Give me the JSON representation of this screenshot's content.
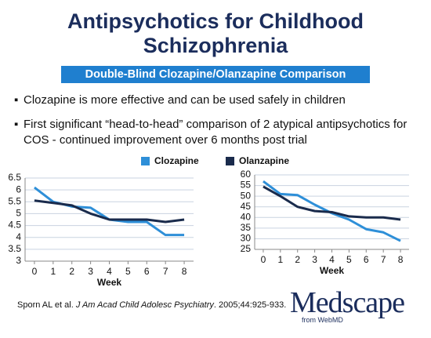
{
  "slide": {
    "title": "Antipsychotics for Childhood Schizophrenia",
    "subtitle": "Double-Blind Clozapine/Olanzapine Comparison",
    "bullets": [
      "Clozapine is more effective and can be used safely in children",
      "First significant “head-to-head” comparison of 2 atypical antipsychotics for COS - continued improvement over 6 months post trial"
    ],
    "citation": {
      "authors": "Sporn AL et al. ",
      "journal": "J Am Acad Child Adolesc Psychiatry",
      "details": ". 2005;44:925-933."
    },
    "logo": "Medscape",
    "logo_sub": "from WebMD"
  },
  "chart_data": [
    {
      "type": "line",
      "x_label": "Week",
      "x": [
        0,
        1,
        2,
        3,
        4,
        5,
        6,
        7,
        8
      ],
      "xlim": [
        -0.5,
        8.5
      ],
      "xticks": [
        0,
        1,
        2,
        3,
        4,
        5,
        6,
        7,
        8
      ],
      "ylim": [
        3,
        6.5
      ],
      "yticks": [
        3,
        3.5,
        4,
        4.5,
        5,
        5.5,
        6,
        6.5
      ],
      "grid": true,
      "series": [
        {
          "name": "Clozapine",
          "color": "#2e8fd8",
          "values": [
            6.1,
            5.5,
            5.3,
            5.25,
            4.75,
            4.65,
            4.65,
            4.1,
            4.1
          ]
        },
        {
          "name": "Olanzapine",
          "color": "#1a2b4c",
          "values": [
            5.55,
            5.45,
            5.35,
            5.0,
            4.75,
            4.75,
            4.75,
            4.65,
            4.75
          ]
        }
      ]
    },
    {
      "type": "line",
      "x_label": "Week",
      "x": [
        0,
        1,
        2,
        3,
        4,
        5,
        6,
        7,
        8
      ],
      "xlim": [
        -0.5,
        8.5
      ],
      "xticks": [
        0,
        1,
        2,
        3,
        4,
        5,
        6,
        7,
        8
      ],
      "ylim": [
        25,
        60
      ],
      "yticks": [
        25,
        30,
        35,
        40,
        45,
        50,
        55,
        60
      ],
      "grid": true,
      "series": [
        {
          "color": "#2e8fd8",
          "values": [
            57,
            51,
            50.5,
            46,
            42,
            39,
            34.5,
            33,
            29
          ]
        },
        {
          "color": "#1a2b4c",
          "values": [
            54.5,
            50,
            45,
            43,
            42.5,
            40.5,
            40,
            40,
            39
          ]
        }
      ]
    }
  ]
}
